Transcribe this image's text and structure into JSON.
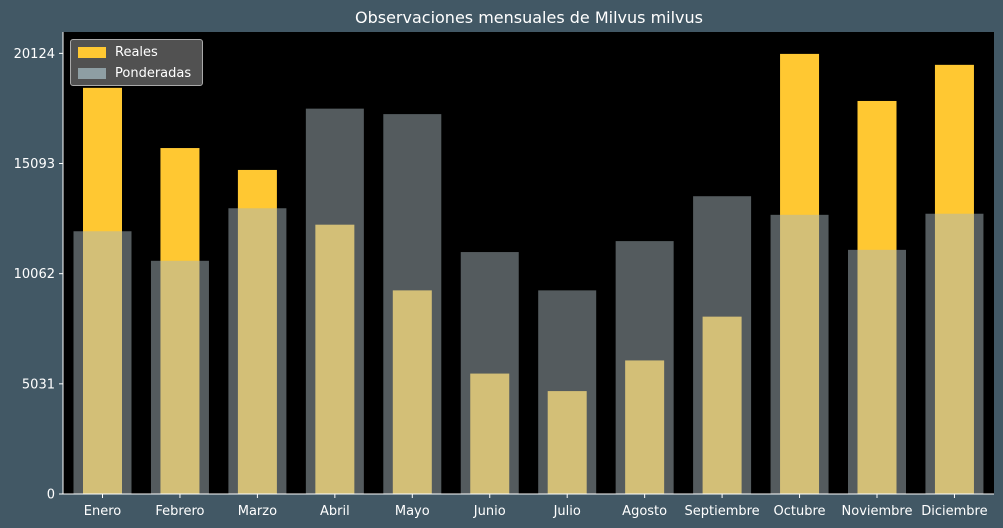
{
  "chart_data": {
    "type": "bar",
    "title": "Observaciones mensuales de Milvus milvus",
    "xlabel": "",
    "ylabel": "",
    "categories": [
      "Enero",
      "Febrero",
      "Marzo",
      "Abril",
      "Mayo",
      "Junio",
      "Julio",
      "Agosto",
      "Septiembre",
      "Octubre",
      "Noviembre",
      "Diciembre"
    ],
    "series": [
      {
        "name": "Reales",
        "color": "#ffc832",
        "values": [
          18550,
          15800,
          14800,
          12300,
          9300,
          5500,
          4700,
          6100,
          8100,
          20100,
          17950,
          19600
        ]
      },
      {
        "name": "Ponderadas",
        "color": "#a8b6bb",
        "values": [
          12000,
          10650,
          13050,
          17600,
          17350,
          11050,
          9300,
          11550,
          13600,
          12750,
          11150,
          12800
        ]
      }
    ],
    "yticks": [
      0,
      5031,
      10062,
      15093,
      20124
    ],
    "ylim": [
      0,
      21100
    ],
    "grid": false,
    "legend_position": "top-left",
    "plot_background": "#000000"
  }
}
